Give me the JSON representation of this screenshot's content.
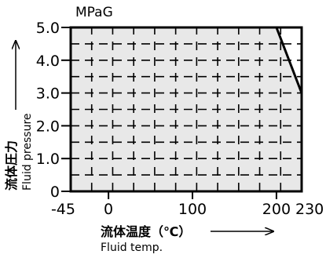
{
  "chart_data": {
    "type": "area",
    "y_unit": "MPaG",
    "xlabel": {
      "ja": "流体温度（℃）",
      "en": "Fluid temp."
    },
    "ylabel": {
      "ja": "流体圧力",
      "en": "Fluid pressure"
    },
    "xlim": [
      -45,
      230
    ],
    "ylim": [
      0,
      5.0
    ],
    "x_ticks": [
      "-45",
      "0",
      "100",
      "200",
      "230"
    ],
    "y_ticks": [
      "0",
      "1.0",
      "2.0",
      "3.0",
      "4.0",
      "5.0"
    ],
    "x_tick_values": [
      -45,
      0,
      100,
      200,
      230
    ],
    "y_tick_values": [
      0,
      1.0,
      2.0,
      3.0,
      4.0,
      5.0
    ],
    "grid": true,
    "boundary": {
      "x": [
        -45,
        -45,
        200,
        230,
        230
      ],
      "y": [
        0,
        5.0,
        5.0,
        3.0,
        0
      ]
    },
    "colors": {
      "fill": "#e8e8e8",
      "line": "#000000"
    }
  }
}
